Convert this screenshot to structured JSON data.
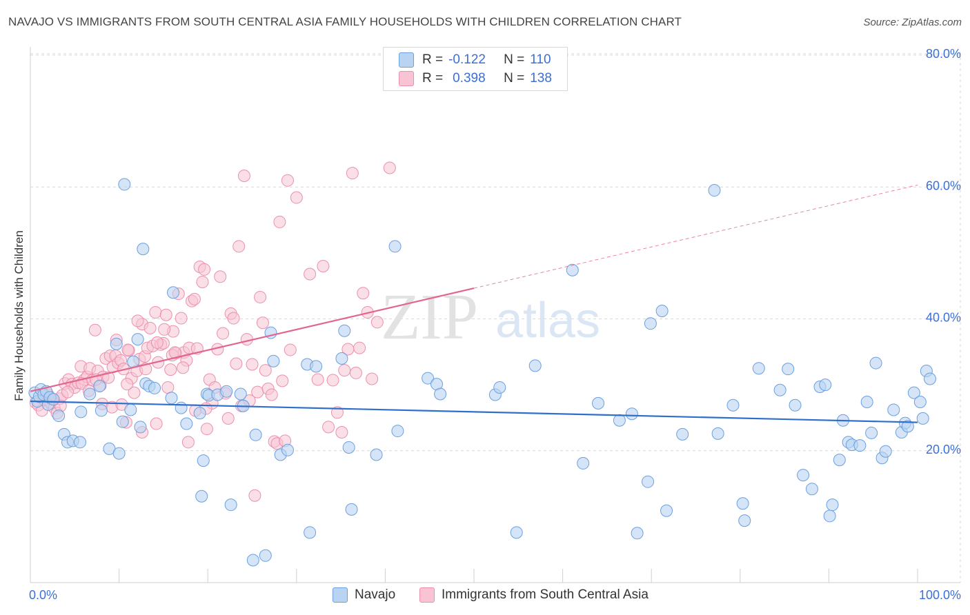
{
  "title": "NAVAJO VS IMMIGRANTS FROM SOUTH CENTRAL ASIA FAMILY HOUSEHOLDS WITH CHILDREN CORRELATION CHART",
  "source": "Source: ZipAtlas.com",
  "watermark_zip": "ZIP",
  "watermark_atlas": "atlas",
  "legend_top": {
    "rows": [
      {
        "r_label": "R =",
        "r_value": "-0.122",
        "n_label": "N =",
        "n_value": "110"
      },
      {
        "r_label": "R =",
        "r_value": "0.398",
        "n_label": "N =",
        "n_value": "138"
      }
    ]
  },
  "legend_bottom": [
    "Navajo",
    "Immigrants from South Central Asia"
  ],
  "colors": {
    "navajo_fill": "#b9d3f2",
    "navajo_stroke": "#6a9fe0",
    "navajo_line": "#2e6fcb",
    "imm_fill": "#f8c4d4",
    "imm_stroke": "#ec8fad",
    "imm_line": "#e2658f",
    "axis_label": "#3a6fd8",
    "grid": "#d9d9d9"
  },
  "chart_data": {
    "type": "scatter",
    "title": "NAVAJO VS IMMIGRANTS FROM SOUTH CENTRAL ASIA FAMILY HOUSEHOLDS WITH CHILDREN CORRELATION CHART",
    "xlabel": "",
    "ylabel": "Family Households with Children",
    "xlim": [
      0,
      100
    ],
    "ylim": [
      0,
      80
    ],
    "x_tick_labels": [
      "0.0%",
      "100.0%"
    ],
    "y_ticks": [
      20,
      40,
      60,
      80
    ],
    "y_tick_labels": [
      "20.0%",
      "40.0%",
      "60.0%",
      "80.0%"
    ],
    "grid": true,
    "series": [
      {
        "name": "Navajo",
        "r": -0.122,
        "n": 110,
        "trend": {
          "x": [
            0,
            100
          ],
          "y": [
            27.5,
            24.3
          ],
          "solid_to": 100
        },
        "points": [
          [
            0.5,
            28.8
          ],
          [
            0.8,
            27.5
          ],
          [
            1.0,
            28.2
          ],
          [
            1.2,
            29.3
          ],
          [
            1.5,
            28.5
          ],
          [
            1.8,
            29.0
          ],
          [
            2.0,
            27.0
          ],
          [
            2.2,
            28.1
          ],
          [
            2.6,
            27.8
          ],
          [
            3.2,
            25.3
          ],
          [
            3.8,
            22.5
          ],
          [
            4.2,
            21.3
          ],
          [
            4.8,
            21.5
          ],
          [
            5.6,
            21.3
          ],
          [
            5.7,
            25.9
          ],
          [
            6.7,
            28.6
          ],
          [
            7.8,
            29.8
          ],
          [
            8.0,
            26.1
          ],
          [
            8.9,
            20.3
          ],
          [
            9.7,
            36.2
          ],
          [
            10.0,
            19.6
          ],
          [
            10.4,
            24.4
          ],
          [
            10.6,
            60.4
          ],
          [
            11.3,
            26.2
          ],
          [
            11.6,
            33.5
          ],
          [
            12.1,
            36.9
          ],
          [
            12.4,
            23.6
          ],
          [
            12.7,
            50.6
          ],
          [
            13.0,
            30.2
          ],
          [
            13.4,
            29.8
          ],
          [
            14.0,
            29.5
          ],
          [
            15.9,
            28.0
          ],
          [
            16.1,
            44.0
          ],
          [
            17.0,
            26.5
          ],
          [
            17.6,
            24.1
          ],
          [
            19.1,
            25.7
          ],
          [
            19.3,
            13.1
          ],
          [
            19.5,
            18.5
          ],
          [
            19.9,
            28.6
          ],
          [
            20.1,
            28.4
          ],
          [
            21.1,
            28.5
          ],
          [
            22.1,
            29.0
          ],
          [
            22.6,
            11.8
          ],
          [
            23.7,
            28.6
          ],
          [
            24.0,
            26.8
          ],
          [
            25.1,
            3.4
          ],
          [
            25.4,
            22.4
          ],
          [
            26.5,
            4.1
          ],
          [
            27.1,
            37.9
          ],
          [
            27.4,
            33.6
          ],
          [
            28.2,
            19.4
          ],
          [
            29.0,
            20.1
          ],
          [
            31.2,
            33.1
          ],
          [
            31.5,
            7.6
          ],
          [
            32.2,
            32.8
          ],
          [
            35.1,
            34.0
          ],
          [
            35.4,
            38.2
          ],
          [
            35.9,
            20.5
          ],
          [
            36.2,
            11.1
          ],
          [
            39.0,
            19.4
          ],
          [
            41.1,
            51.0
          ],
          [
            41.4,
            23.0
          ],
          [
            44.8,
            31.0
          ],
          [
            45.8,
            30.1
          ],
          [
            46.2,
            28.6
          ],
          [
            52.4,
            28.5
          ],
          [
            52.9,
            29.6
          ],
          [
            54.8,
            7.6
          ],
          [
            56.9,
            32.9
          ],
          [
            61.1,
            47.4
          ],
          [
            62.3,
            18.1
          ],
          [
            64.0,
            27.2
          ],
          [
            66.4,
            24.6
          ],
          [
            67.8,
            25.6
          ],
          [
            68.4,
            7.5
          ],
          [
            69.6,
            15.3
          ],
          [
            69.9,
            39.3
          ],
          [
            71.2,
            41.2
          ],
          [
            71.7,
            10.9
          ],
          [
            73.5,
            22.5
          ],
          [
            77.1,
            59.5
          ],
          [
            77.5,
            22.6
          ],
          [
            79.2,
            26.9
          ],
          [
            80.3,
            12.0
          ],
          [
            80.5,
            9.4
          ],
          [
            82.1,
            32.5
          ],
          [
            84.5,
            29.2
          ],
          [
            85.4,
            32.4
          ],
          [
            86.2,
            26.9
          ],
          [
            87.1,
            16.3
          ],
          [
            88.1,
            14.2
          ],
          [
            89.0,
            29.7
          ],
          [
            89.6,
            30.0
          ],
          [
            90.1,
            10.1
          ],
          [
            90.4,
            11.8
          ],
          [
            91.2,
            18.6
          ],
          [
            91.6,
            24.6
          ],
          [
            92.2,
            21.3
          ],
          [
            92.6,
            20.9
          ],
          [
            93.5,
            20.8
          ],
          [
            94.3,
            27.4
          ],
          [
            94.8,
            22.7
          ],
          [
            95.3,
            33.3
          ],
          [
            96.0,
            18.9
          ],
          [
            96.4,
            19.9
          ],
          [
            97.3,
            26.2
          ],
          [
            98.2,
            22.8
          ],
          [
            98.6,
            24.2
          ],
          [
            98.9,
            23.7
          ],
          [
            99.6,
            28.8
          ],
          [
            100.3,
            27.4
          ],
          [
            100.6,
            24.9
          ],
          [
            101.0,
            32.1
          ],
          [
            101.4,
            30.9
          ]
        ]
      },
      {
        "name": "Immigrants from South Central Asia",
        "r": 0.398,
        "n": 138,
        "trend": {
          "x": [
            0,
            100
          ],
          "y": [
            29.0,
            60.3
          ],
          "solid_to": 50
        },
        "points": [
          [
            0.6,
            27.3
          ],
          [
            0.9,
            26.9
          ],
          [
            1.3,
            26.1
          ],
          [
            1.6,
            27.7
          ],
          [
            2.0,
            28.5
          ],
          [
            2.3,
            27.3
          ],
          [
            2.7,
            26.5
          ],
          [
            3.0,
            25.7
          ],
          [
            3.3,
            27.9
          ],
          [
            3.6,
            28.4
          ],
          [
            3.9,
            30.2
          ],
          [
            4.3,
            30.8
          ],
          [
            4.7,
            30.1
          ],
          [
            5.0,
            29.6
          ],
          [
            5.4,
            30.3
          ],
          [
            5.7,
            32.8
          ],
          [
            6.1,
            30.8
          ],
          [
            6.4,
            31.2
          ],
          [
            6.7,
            32.5
          ],
          [
            7.0,
            30.7
          ],
          [
            7.3,
            38.3
          ],
          [
            7.6,
            32.1
          ],
          [
            7.9,
            29.9
          ],
          [
            8.2,
            31.2
          ],
          [
            8.5,
            34.0
          ],
          [
            8.8,
            31.1
          ],
          [
            9.0,
            34.4
          ],
          [
            9.3,
            32.7
          ],
          [
            9.6,
            34.4
          ],
          [
            9.9,
            33.3
          ],
          [
            10.2,
            33.7
          ],
          [
            10.5,
            32.4
          ],
          [
            10.8,
            24.3
          ],
          [
            11.1,
            35.2
          ],
          [
            11.4,
            31.0
          ],
          [
            11.7,
            28.8
          ],
          [
            12.0,
            32.1
          ],
          [
            12.3,
            33.9
          ],
          [
            12.6,
            39.2
          ],
          [
            12.9,
            34.3
          ],
          [
            13.2,
            35.6
          ],
          [
            13.5,
            38.6
          ],
          [
            13.8,
            35.9
          ],
          [
            14.1,
            41.0
          ],
          [
            14.4,
            33.4
          ],
          [
            14.7,
            36.1
          ],
          [
            15.0,
            36.3
          ],
          [
            15.3,
            40.6
          ],
          [
            15.5,
            29.6
          ],
          [
            15.8,
            32.3
          ],
          [
            16.1,
            38.1
          ],
          [
            16.4,
            34.8
          ],
          [
            16.7,
            43.8
          ],
          [
            17.0,
            40.1
          ],
          [
            17.3,
            34.9
          ],
          [
            17.6,
            33.7
          ],
          [
            17.9,
            35.6
          ],
          [
            18.2,
            42.7
          ],
          [
            18.5,
            43.0
          ],
          [
            18.8,
            35.5
          ],
          [
            19.1,
            47.9
          ],
          [
            19.4,
            45.6
          ],
          [
            19.6,
            47.5
          ],
          [
            19.9,
            23.3
          ],
          [
            20.2,
            30.8
          ],
          [
            20.5,
            27.2
          ],
          [
            20.8,
            29.6
          ],
          [
            21.1,
            35.4
          ],
          [
            21.4,
            46.4
          ],
          [
            21.7,
            37.8
          ],
          [
            22.0,
            28.7
          ],
          [
            22.3,
            24.9
          ],
          [
            22.6,
            40.8
          ],
          [
            22.9,
            40.1
          ],
          [
            23.2,
            33.2
          ],
          [
            23.5,
            51.0
          ],
          [
            23.8,
            26.8
          ],
          [
            24.1,
            61.7
          ],
          [
            24.4,
            36.9
          ],
          [
            24.7,
            27.6
          ],
          [
            25.0,
            33.1
          ],
          [
            25.3,
            13.2
          ],
          [
            25.6,
            28.9
          ],
          [
            25.9,
            43.3
          ],
          [
            26.2,
            39.4
          ],
          [
            26.5,
            32.2
          ],
          [
            26.8,
            29.4
          ],
          [
            27.2,
            28.5
          ],
          [
            27.5,
            21.4
          ],
          [
            27.8,
            21.1
          ],
          [
            28.1,
            54.7
          ],
          [
            28.4,
            30.6
          ],
          [
            28.7,
            21.5
          ],
          [
            29.0,
            61.0
          ],
          [
            29.3,
            35.3
          ],
          [
            30.0,
            58.4
          ],
          [
            31.5,
            46.8
          ],
          [
            32.4,
            30.8
          ],
          [
            33.0,
            48.0
          ],
          [
            33.6,
            23.6
          ],
          [
            34.1,
            30.7
          ],
          [
            34.6,
            25.8
          ],
          [
            35.1,
            22.8
          ],
          [
            35.4,
            32.2
          ],
          [
            35.8,
            35.4
          ],
          [
            36.3,
            62.1
          ],
          [
            36.7,
            31.8
          ],
          [
            37.1,
            35.6
          ],
          [
            37.5,
            43.9
          ],
          [
            38.0,
            41.0
          ],
          [
            38.5,
            30.9
          ],
          [
            39.1,
            39.5
          ],
          [
            40.5,
            62.9
          ],
          [
            9.7,
            36.8
          ],
          [
            10.9,
            30.1
          ],
          [
            12.6,
            22.8
          ],
          [
            14.2,
            24.1
          ],
          [
            16.0,
            34.5
          ],
          [
            17.8,
            21.3
          ],
          [
            18.6,
            26.1
          ],
          [
            19.8,
            26.4
          ],
          [
            2.3,
            27.9
          ],
          [
            3.4,
            26.8
          ],
          [
            4.2,
            28.9
          ],
          [
            5.8,
            30.2
          ],
          [
            6.6,
            29.1
          ],
          [
            7.4,
            30.8
          ],
          [
            8.1,
            27.1
          ],
          [
            9.2,
            26.6
          ],
          [
            10.3,
            27.0
          ],
          [
            11.0,
            35.3
          ],
          [
            12.1,
            39.7
          ],
          [
            13.0,
            32.4
          ],
          [
            14.3,
            36.4
          ],
          [
            15.1,
            38.4
          ],
          [
            16.3,
            34.9
          ],
          [
            17.2,
            32.6
          ]
        ]
      }
    ]
  }
}
